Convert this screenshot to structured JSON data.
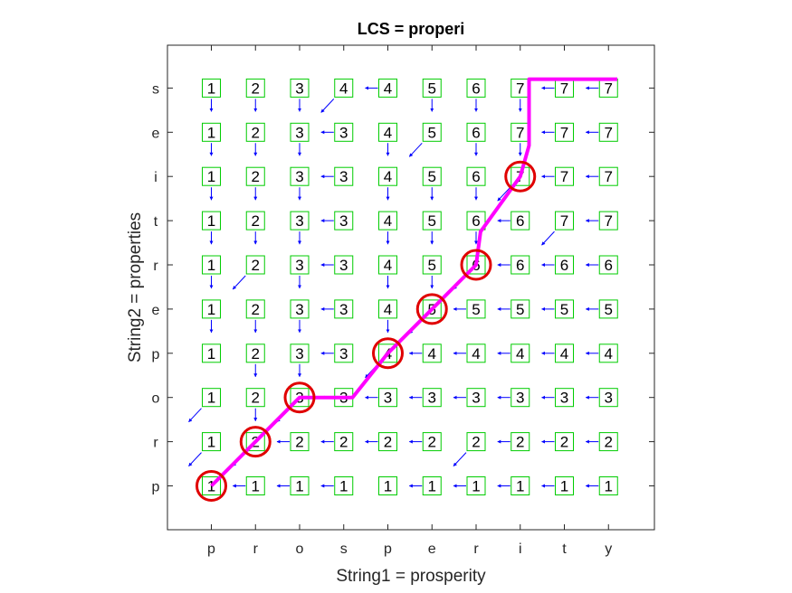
{
  "chart_data": {
    "type": "table",
    "title": "LCS = properi",
    "xlabel": "String1 = prosperity",
    "ylabel": "String2 = properties",
    "string1": "prosperity",
    "string2": "properties",
    "x_ticks": [
      "p",
      "r",
      "o",
      "s",
      "p",
      "e",
      "r",
      "i",
      "t",
      "y"
    ],
    "y_ticks": [
      "p",
      "r",
      "o",
      "p",
      "e",
      "r",
      "t",
      "i",
      "e",
      "s"
    ],
    "lcs": "properi",
    "matrix_rows_bottom_to_top": [
      [
        1,
        1,
        1,
        1,
        1,
        1,
        1,
        1,
        1,
        1
      ],
      [
        1,
        2,
        2,
        2,
        2,
        2,
        2,
        2,
        2,
        2
      ],
      [
        1,
        2,
        3,
        3,
        3,
        3,
        3,
        3,
        3,
        3
      ],
      [
        1,
        2,
        3,
        3,
        4,
        4,
        4,
        4,
        4,
        4
      ],
      [
        1,
        2,
        3,
        3,
        4,
        5,
        5,
        5,
        5,
        5
      ],
      [
        1,
        2,
        3,
        3,
        4,
        5,
        6,
        6,
        6,
        6
      ],
      [
        1,
        2,
        3,
        3,
        4,
        5,
        6,
        6,
        7,
        7
      ],
      [
        1,
        2,
        3,
        3,
        4,
        5,
        6,
        7,
        7,
        7
      ],
      [
        1,
        2,
        3,
        3,
        4,
        5,
        6,
        7,
        7,
        7
      ],
      [
        1,
        2,
        3,
        4,
        4,
        5,
        6,
        7,
        7,
        7
      ]
    ],
    "arrows_rows_bottom_to_top": [
      [
        "",
        "L",
        "L",
        "L",
        "",
        "L",
        "L",
        "L",
        "L",
        "L"
      ],
      [
        "D",
        "D",
        "L",
        "L",
        "L",
        "L",
        "D",
        "L",
        "L",
        "L"
      ],
      [
        "D",
        "U",
        "D",
        "L",
        "L",
        "L",
        "L",
        "L",
        "L",
        "L"
      ],
      [
        "",
        "U",
        "U",
        "L",
        "D",
        "L",
        "L",
        "L",
        "L",
        "L"
      ],
      [
        "U",
        "U",
        "U",
        "L",
        "U",
        "D",
        "L",
        "L",
        "L",
        "L"
      ],
      [
        "U",
        "D",
        "U",
        "L",
        "U",
        "U",
        "D",
        "L",
        "L",
        "L"
      ],
      [
        "U",
        "U",
        "U",
        "L",
        "U",
        "U",
        "U",
        "L",
        "D",
        "L"
      ],
      [
        "U",
        "U",
        "U",
        "L",
        "U",
        "U",
        "U",
        "D",
        "L",
        "L"
      ],
      [
        "U",
        "U",
        "U",
        "L",
        "U",
        "D",
        "U",
        "U",
        "L",
        "L"
      ],
      [
        "U",
        "U",
        "U",
        "D",
        "L",
        "U",
        "U",
        "U",
        "L",
        "L"
      ]
    ],
    "circled_cells": [
      [
        0,
        0
      ],
      [
        1,
        1
      ],
      [
        2,
        2
      ],
      [
        4,
        3
      ],
      [
        5,
        4
      ],
      [
        6,
        5
      ],
      [
        7,
        7
      ]
    ],
    "path_points": [
      [
        0,
        0
      ],
      [
        1,
        1
      ],
      [
        2,
        2
      ],
      [
        3.2,
        2
      ],
      [
        4,
        3
      ],
      [
        5,
        4
      ],
      [
        6,
        5
      ],
      [
        6.1,
        5.75
      ],
      [
        7,
        7
      ],
      [
        7.2,
        7.7
      ],
      [
        7.2,
        9.2
      ],
      [
        9.2,
        9.2
      ]
    ],
    "colors": {
      "box": "#00cc00",
      "arrow": "#0000ff",
      "path": "#ff00ff",
      "circle": "#e00000",
      "axes": "#262626"
    }
  }
}
